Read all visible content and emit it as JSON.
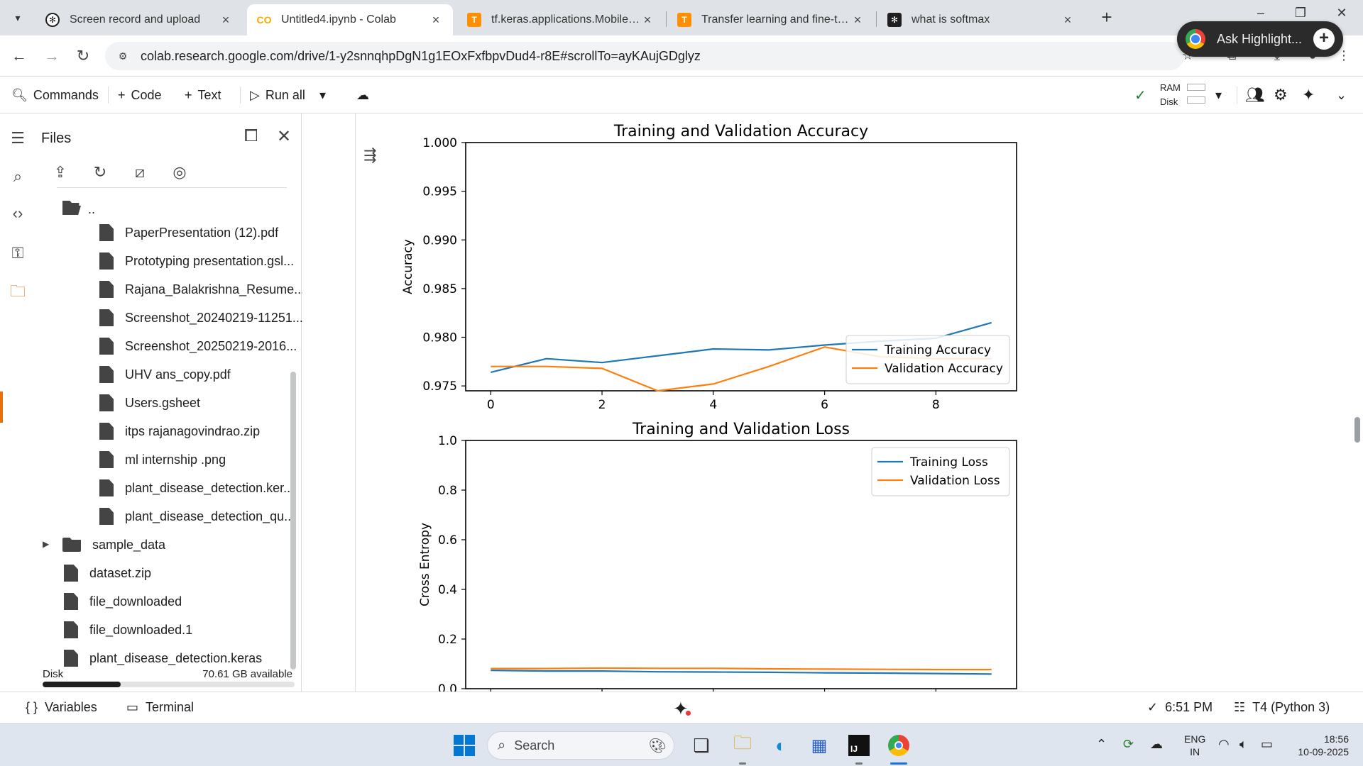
{
  "browser": {
    "tabs": [
      {
        "label": "Screen record and upload",
        "icon": "openai-icon"
      },
      {
        "label": "Untitled4.ipynb - Colab",
        "icon": "colab-icon"
      },
      {
        "label": "tf.keras.applications.MobileNet",
        "icon": "tensorflow-icon"
      },
      {
        "label": "Transfer learning and fine-tunin",
        "icon": "tensorflow-icon"
      },
      {
        "label": "what is softmax",
        "icon": "openai-icon"
      }
    ],
    "url": "colab.research.google.com/drive/1-y2snnqhpDgN1g1EOxFxfbpvDud4-r8E#scrollTo=ayKAujGDglyz",
    "ask_highlight": "Ask Highlight..."
  },
  "toolbar": {
    "commands": "Commands",
    "code": "Code",
    "text": "Text",
    "run_all": "Run all",
    "ram": "RAM",
    "disk": "Disk"
  },
  "files": {
    "title": "Files",
    "parent": "..",
    "items": [
      "PaperPresentation (12).pdf",
      "Prototyping presentation.gsl...",
      "Rajana_Balakrishna_Resume...",
      "Screenshot_20240219-11251...",
      "Screenshot_20250219-2016...",
      "UHV ans_copy.pdf",
      "Users.gsheet",
      "itps rajanagovindrao.zip",
      "ml internship .png",
      "plant_disease_detection.ker...",
      "plant_disease_detection_qu..."
    ],
    "root_items": [
      {
        "label": "sample_data",
        "type": "folder"
      },
      {
        "label": "dataset.zip",
        "type": "file"
      },
      {
        "label": "file_downloaded",
        "type": "file"
      },
      {
        "label": "file_downloaded.1",
        "type": "file"
      },
      {
        "label": "plant_disease_detection.keras",
        "type": "file"
      }
    ],
    "disk_label": "Disk",
    "disk_available": "70.61 GB available",
    "disk_used_fraction": 0.31
  },
  "chart_data": [
    {
      "type": "line",
      "title": "Training and Validation Accuracy",
      "xlabel": "",
      "ylabel": "Accuracy",
      "x": [
        0,
        1,
        2,
        3,
        4,
        5,
        6,
        7,
        8,
        9
      ],
      "xticks": [
        0,
        2,
        4,
        6,
        8
      ],
      "yticks": [
        "0.975",
        "0.980",
        "0.985",
        "0.990",
        "0.995",
        "1.000"
      ],
      "ylim": [
        0.9745,
        1.0
      ],
      "xlim": [
        -0.45,
        9.45
      ],
      "legend": "lower-right",
      "series": [
        {
          "name": "Training Accuracy",
          "color": "#1f77b4",
          "values": [
            0.9764,
            0.9778,
            0.9774,
            0.9781,
            0.9788,
            0.9787,
            0.9792,
            0.9796,
            0.9799,
            0.9815
          ]
        },
        {
          "name": "Validation Accuracy",
          "color": "#ff7f0e",
          "values": [
            0.977,
            0.977,
            0.9768,
            0.9745,
            0.9752,
            0.977,
            0.979,
            0.978,
            0.9778,
            0.9778
          ]
        }
      ]
    },
    {
      "type": "line",
      "title": "Training and Validation Loss",
      "xlabel": "",
      "ylabel": "Cross Entropy",
      "x": [
        0,
        1,
        2,
        3,
        4,
        5,
        6,
        7,
        8,
        9
      ],
      "yticks": [
        "0.0",
        "0.2",
        "0.4",
        "0.6",
        "0.8",
        "1.0"
      ],
      "ylim": [
        0.0,
        1.0
      ],
      "xlim": [
        -0.45,
        9.45
      ],
      "legend": "upper-right",
      "series": [
        {
          "name": "Training Loss",
          "color": "#1f77b4",
          "values": [
            0.074,
            0.071,
            0.071,
            0.068,
            0.067,
            0.066,
            0.064,
            0.063,
            0.061,
            0.059
          ]
        },
        {
          "name": "Validation Loss",
          "color": "#ff7f0e",
          "values": [
            0.081,
            0.081,
            0.083,
            0.082,
            0.082,
            0.08,
            0.079,
            0.078,
            0.077,
            0.077
          ]
        }
      ]
    }
  ],
  "statusbar": {
    "variables": "Variables",
    "terminal": "Terminal",
    "time": "6:51 PM",
    "runtime": "T4 (Python 3)"
  },
  "taskbar": {
    "search": "Search",
    "lang_top": "ENG",
    "lang_bottom": "IN",
    "clock_time": "18:56",
    "clock_date": "10-09-2025"
  }
}
